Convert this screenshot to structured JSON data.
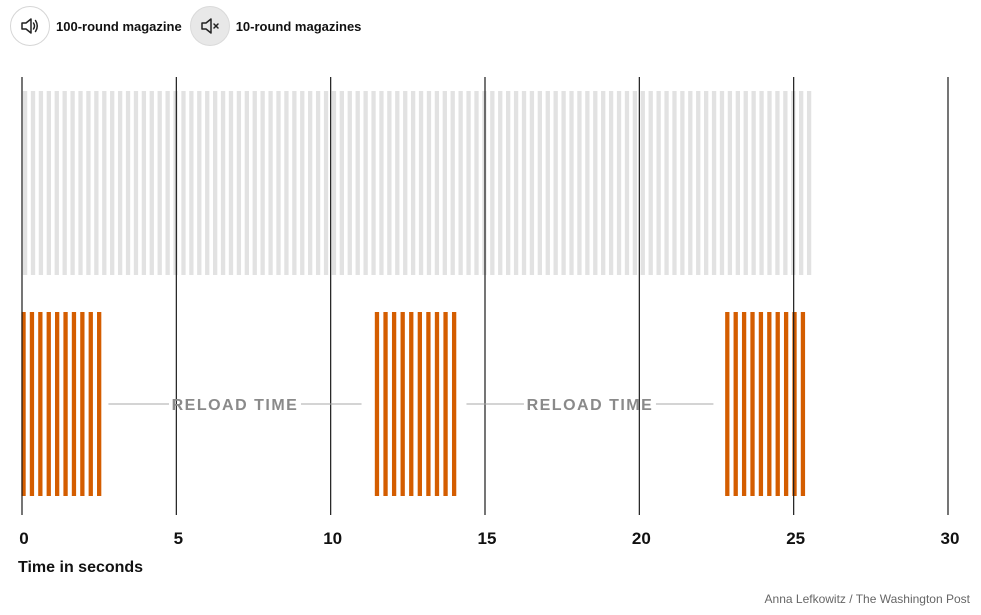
{
  "controls": {
    "sound_on_label": "100-round magazine",
    "sound_off_label": "10-round magazines",
    "sound_on_icon": "speaker-icon",
    "sound_off_icon": "speaker-muted-icon"
  },
  "chart_data": {
    "type": "timeline",
    "xlabel": "Time in seconds",
    "xlim": [
      0,
      30
    ],
    "xticks": [
      0,
      5,
      10,
      15,
      20,
      25,
      30
    ],
    "series": [
      {
        "name": "100-round magazine",
        "color": "#e2e2e2",
        "rounds": 100,
        "start": 0.1,
        "end": 25.5
      },
      {
        "name": "10-round magazines",
        "color": "#d45d00",
        "bursts": [
          {
            "start": 0.05,
            "end": 2.5,
            "rounds": 10
          },
          {
            "start": 11.5,
            "end": 14.0,
            "rounds": 10
          },
          {
            "start": 22.85,
            "end": 25.3,
            "rounds": 10
          }
        ]
      }
    ],
    "annotations": [
      {
        "text": "RELOAD TIME",
        "from": 2.8,
        "to": 11.0
      },
      {
        "text": "RELOAD TIME",
        "from": 14.4,
        "to": 22.4
      }
    ]
  },
  "credit": "Anna Lefkowitz / The Washington Post"
}
